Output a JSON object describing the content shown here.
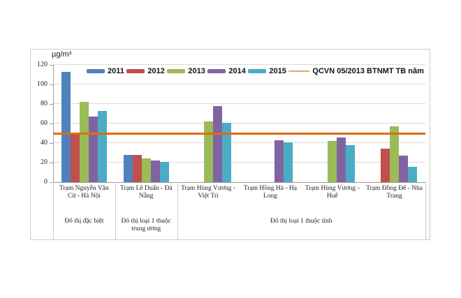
{
  "chart_data": {
    "type": "bar",
    "title": "",
    "ylabel": "µg/m³",
    "ylim": [
      0,
      120
    ],
    "yticks": [
      0,
      20,
      40,
      60,
      80,
      100,
      120
    ],
    "grid": true,
    "legend_position": "top-inside-horizontal",
    "categories": [
      "Trạm Nguyễn Văn Cừ - Hà Nội",
      "Trạm Lê Duẩn - Đà Nẵng",
      "Trạm Hùng Vương - Việt Trì",
      "Trạm Hồng Hà - Hạ Long",
      "Trạm Hùng Vương - Huế",
      "Trạm Đồng Đế - Nha Trang"
    ],
    "category_groups": [
      {
        "label": "Đô thị đặc biệt",
        "span": 1
      },
      {
        "label": "Đô thị loại 1 thuộc trung ương",
        "span": 1
      },
      {
        "label": "Đô thị loại 1 thuộc tỉnh",
        "span": 4
      }
    ],
    "series": [
      {
        "name": "2011",
        "color": "#4F81BD",
        "values": [
          113,
          28,
          null,
          null,
          null,
          null
        ]
      },
      {
        "name": "2012",
        "color": "#C0504D",
        "values": [
          51,
          28,
          null,
          null,
          null,
          34
        ]
      },
      {
        "name": "2013",
        "color": "#9BBB59",
        "values": [
          82,
          24,
          62,
          null,
          42,
          57
        ]
      },
      {
        "name": "2014",
        "color": "#8064A2",
        "values": [
          67,
          22,
          78,
          43,
          46,
          27
        ]
      },
      {
        "name": "2015",
        "color": "#4BACC6",
        "values": [
          73,
          21,
          61,
          41,
          38,
          16
        ]
      }
    ],
    "reference_line": {
      "label": "QCVN 05/2013 BTNMT TB năm",
      "value": 50,
      "color": "#E26B0A",
      "legend_color": "#E8A96B"
    }
  }
}
